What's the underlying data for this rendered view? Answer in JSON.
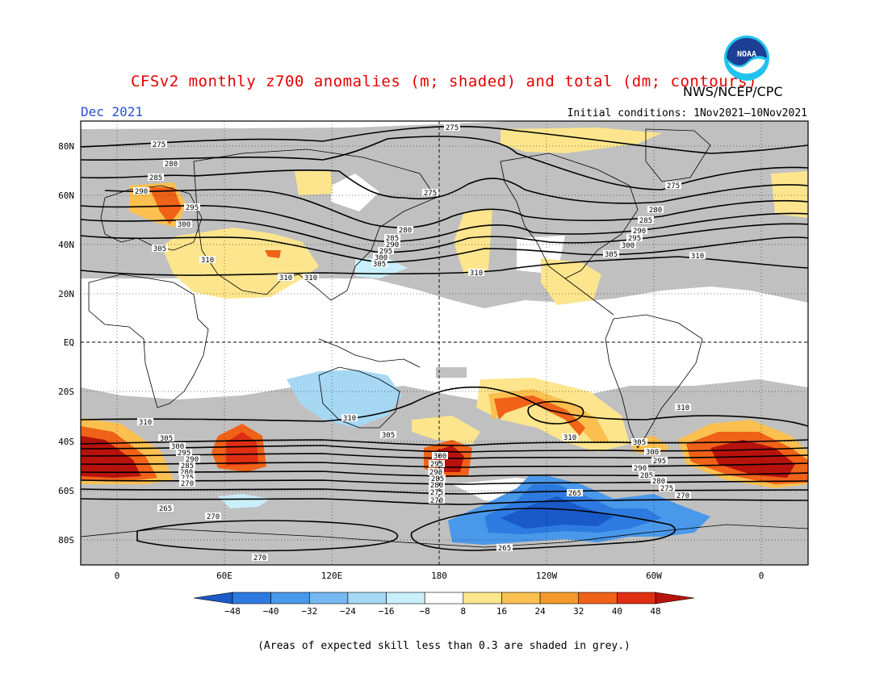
{
  "title": "CFSv2 monthly z700 anomalies (m; shaded) and total (dm; contours)",
  "agency": "NWS/NCEP/CPC",
  "logo_text": "NOAA",
  "month_label": "Dec 2021",
  "initial_conditions": "Initial conditions: 1Nov2021–10Nov2021",
  "footnote": "(Areas of expected skill less than 0.3 are shaded in grey.)",
  "lat_labels": [
    "80N",
    "60N",
    "40N",
    "20N",
    "EQ",
    "20S",
    "40S",
    "60S",
    "80S"
  ],
  "lon_labels": [
    "0",
    "60E",
    "120E",
    "180",
    "120W",
    "60W",
    "0"
  ],
  "colorbar": {
    "labels": [
      "−48",
      "−40",
      "−32",
      "−24",
      "−16",
      "−8",
      "8",
      "16",
      "24",
      "32",
      "40",
      "48"
    ],
    "colors": [
      "#1a59c8",
      "#2d7be0",
      "#4a98ea",
      "#76b8f2",
      "#a6d8f4",
      "#c9effa",
      "#ffffff",
      "#fce58c",
      "#fbc050",
      "#f59a2a",
      "#f06218",
      "#e02e12",
      "#b8120c"
    ]
  },
  "contour_labels": [
    {
      "text": "275"
    },
    {
      "text": "280"
    },
    {
      "text": "285"
    },
    {
      "text": "290"
    },
    {
      "text": "295"
    },
    {
      "text": "300"
    },
    {
      "text": "305"
    },
    {
      "text": "310"
    },
    {
      "text": "275"
    },
    {
      "text": "280"
    },
    {
      "text": "285"
    },
    {
      "text": "290"
    },
    {
      "text": "295"
    },
    {
      "text": "300"
    },
    {
      "text": "305"
    },
    {
      "text": "310"
    },
    {
      "text": "275"
    },
    {
      "text": "280"
    },
    {
      "text": "285"
    },
    {
      "text": "290"
    },
    {
      "text": "295"
    },
    {
      "text": "300"
    },
    {
      "text": "305"
    },
    {
      "text": "310"
    },
    {
      "text": "310"
    },
    {
      "text": "275"
    },
    {
      "text": "310"
    },
    {
      "text": "310"
    },
    {
      "text": "305"
    },
    {
      "text": "300"
    },
    {
      "text": "295"
    },
    {
      "text": "290"
    },
    {
      "text": "285"
    },
    {
      "text": "280"
    },
    {
      "text": "275"
    },
    {
      "text": "270"
    },
    {
      "text": "265"
    },
    {
      "text": "270"
    },
    {
      "text": "270"
    },
    {
      "text": "265"
    },
    {
      "text": "270"
    },
    {
      "text": "265"
    },
    {
      "text": "310"
    },
    {
      "text": "305"
    },
    {
      "text": "310"
    },
    {
      "text": "305"
    },
    {
      "text": "300"
    },
    {
      "text": "295"
    },
    {
      "text": "290"
    },
    {
      "text": "285"
    },
    {
      "text": "280"
    },
    {
      "text": "275"
    },
    {
      "text": "270"
    },
    {
      "text": "300"
    },
    {
      "text": "295"
    },
    {
      "text": "290"
    },
    {
      "text": "285"
    },
    {
      "text": "280"
    },
    {
      "text": "275"
    },
    {
      "text": "270"
    },
    {
      "text": "310"
    }
  ]
}
